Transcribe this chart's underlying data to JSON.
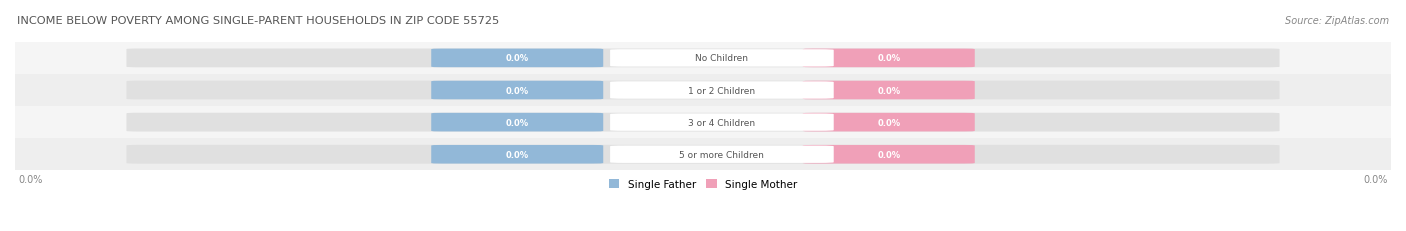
{
  "title": "INCOME BELOW POVERTY AMONG SINGLE-PARENT HOUSEHOLDS IN ZIP CODE 55725",
  "source": "Source: ZipAtlas.com",
  "categories": [
    "No Children",
    "1 or 2 Children",
    "3 or 4 Children",
    "5 or more Children"
  ],
  "father_values": [
    0.0,
    0.0,
    0.0,
    0.0
  ],
  "mother_values": [
    0.0,
    0.0,
    0.0,
    0.0
  ],
  "father_color": "#92b8d8",
  "mother_color": "#f0a0b8",
  "bar_bg_color": "#e0e0e0",
  "row_bg_colors": [
    "#f5f5f5",
    "#eeeeee"
  ],
  "axis_label_left": "0.0%",
  "axis_label_right": "0.0%",
  "legend_father": "Single Father",
  "legend_mother": "Single Mother",
  "title_color": "#555555",
  "source_color": "#888888",
  "label_text_color": "#ffffff",
  "category_text_color": "#555555",
  "figsize": [
    14.06,
    2.32
  ],
  "dpi": 100
}
